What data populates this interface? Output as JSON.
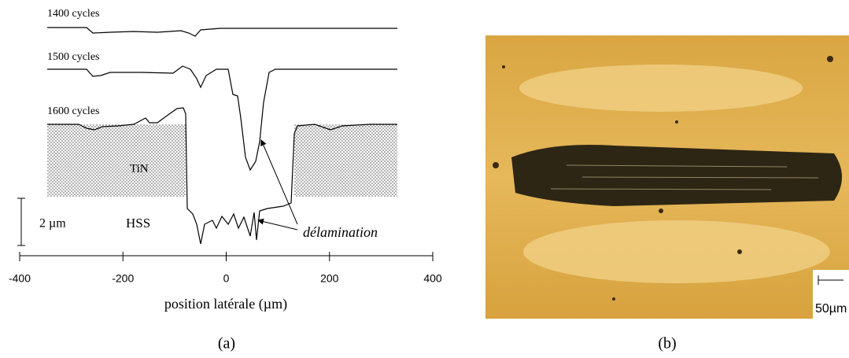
{
  "panel_a": {
    "trace_labels": [
      "1400 cycles",
      "1500 cycles",
      "1600 cycles"
    ],
    "layer_labels": {
      "coating": "TiN",
      "substrate": "HSS"
    },
    "scale_bar": "2 µm",
    "annotation": "délamination",
    "x_axis": {
      "label": "position latérale (µm)",
      "ticks": [
        -400,
        -200,
        0,
        200,
        400
      ],
      "lim": [
        -400,
        400
      ]
    },
    "caption": "(a)"
  },
  "panel_b": {
    "scale_label": "50µm",
    "caption": "(b)"
  }
}
